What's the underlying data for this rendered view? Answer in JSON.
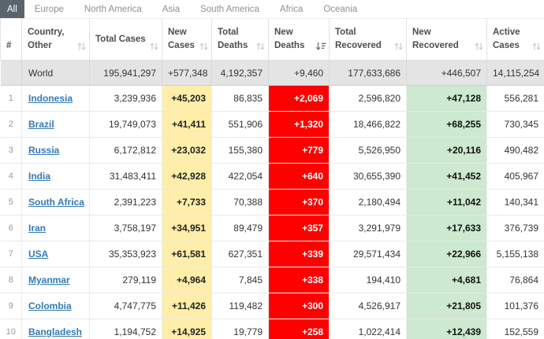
{
  "tabbar": {
    "tabs": [
      {
        "id": "all",
        "label": "All",
        "active": true
      },
      {
        "id": "europe",
        "label": "Europe",
        "active": false
      },
      {
        "id": "north-america",
        "label": "North America",
        "active": false
      },
      {
        "id": "asia",
        "label": "Asia",
        "active": false
      },
      {
        "id": "south-america",
        "label": "South America",
        "active": false
      },
      {
        "id": "africa",
        "label": "Africa",
        "active": false
      },
      {
        "id": "oceania",
        "label": "Oceania",
        "active": false
      }
    ]
  },
  "table": {
    "columns": [
      {
        "id": "rank",
        "label": "#",
        "sortable": false,
        "sort": "none",
        "icon": ""
      },
      {
        "id": "country",
        "label": "Country, Other",
        "sortable": true,
        "sort": "none",
        "icon": "sort-updown-icon"
      },
      {
        "id": "total_cases",
        "label": "Total Cases",
        "sortable": true,
        "sort": "none",
        "icon": "sort-updown-icon"
      },
      {
        "id": "new_cases",
        "label": "New Cases",
        "sortable": true,
        "sort": "none",
        "icon": "sort-updown-icon"
      },
      {
        "id": "total_deaths",
        "label": "Total Deaths",
        "sortable": true,
        "sort": "none",
        "icon": "sort-updown-icon"
      },
      {
        "id": "new_deaths",
        "label": "New Deaths",
        "sortable": true,
        "sort": "desc",
        "icon": "sort-amount-desc-icon"
      },
      {
        "id": "total_recovered",
        "label": "Total Recovered",
        "sortable": true,
        "sort": "none",
        "icon": "sort-updown-icon"
      },
      {
        "id": "new_recovered",
        "label": "New Recovered",
        "sortable": true,
        "sort": "none",
        "icon": "sort-updown-icon"
      },
      {
        "id": "active_cases",
        "label": "Active Cases",
        "sortable": true,
        "sort": "none",
        "icon": "sort-updown-icon"
      }
    ],
    "world_row": {
      "rank": "",
      "country": "World",
      "total_cases": "195,941,297",
      "new_cases": "+577,348",
      "total_deaths": "4,192,357",
      "new_deaths": "+9,460",
      "total_recovered": "177,633,686",
      "new_recovered": "+446,507",
      "active_cases": "14,115,254"
    },
    "rows": [
      {
        "rank": "1",
        "country": "Indonesia",
        "total_cases": "3,239,936",
        "new_cases": "+45,203",
        "total_deaths": "86,835",
        "new_deaths": "+2,069",
        "total_recovered": "2,596,820",
        "new_recovered": "+47,128",
        "active_cases": "556,281"
      },
      {
        "rank": "2",
        "country": "Brazil",
        "total_cases": "19,749,073",
        "new_cases": "+41,411",
        "total_deaths": "551,906",
        "new_deaths": "+1,320",
        "total_recovered": "18,466,822",
        "new_recovered": "+68,255",
        "active_cases": "730,345"
      },
      {
        "rank": "3",
        "country": "Russia",
        "total_cases": "6,172,812",
        "new_cases": "+23,032",
        "total_deaths": "155,380",
        "new_deaths": "+779",
        "total_recovered": "5,526,950",
        "new_recovered": "+20,116",
        "active_cases": "490,482"
      },
      {
        "rank": "4",
        "country": "India",
        "total_cases": "31,483,411",
        "new_cases": "+42,928",
        "total_deaths": "422,054",
        "new_deaths": "+640",
        "total_recovered": "30,655,390",
        "new_recovered": "+41,452",
        "active_cases": "405,967"
      },
      {
        "rank": "5",
        "country": "South Africa",
        "total_cases": "2,391,223",
        "new_cases": "+7,733",
        "total_deaths": "70,388",
        "new_deaths": "+370",
        "total_recovered": "2,180,494",
        "new_recovered": "+11,042",
        "active_cases": "140,341"
      },
      {
        "rank": "6",
        "country": "Iran",
        "total_cases": "3,758,197",
        "new_cases": "+34,951",
        "total_deaths": "89,479",
        "new_deaths": "+357",
        "total_recovered": "3,291,979",
        "new_recovered": "+17,633",
        "active_cases": "376,739"
      },
      {
        "rank": "7",
        "country": "USA",
        "total_cases": "35,353,923",
        "new_cases": "+61,581",
        "total_deaths": "627,351",
        "new_deaths": "+339",
        "total_recovered": "29,571,434",
        "new_recovered": "+22,966",
        "active_cases": "5,155,138"
      },
      {
        "rank": "8",
        "country": "Myanmar",
        "total_cases": "279,119",
        "new_cases": "+4,964",
        "total_deaths": "7,845",
        "new_deaths": "+338",
        "total_recovered": "194,410",
        "new_recovered": "+4,681",
        "active_cases": "76,864"
      },
      {
        "rank": "9",
        "country": "Colombia",
        "total_cases": "4,747,775",
        "new_cases": "+11,426",
        "total_deaths": "119,482",
        "new_deaths": "+300",
        "total_recovered": "4,526,917",
        "new_recovered": "+21,805",
        "active_cases": "101,376"
      },
      {
        "rank": "10",
        "country": "Bangladesh",
        "total_cases": "1,194,752",
        "new_cases": "+14,925",
        "total_deaths": "19,779",
        "new_deaths": "+258",
        "total_recovered": "1,022,414",
        "new_recovered": "+12,439",
        "active_cases": "152,559"
      }
    ]
  },
  "colors": {
    "active_tab_bg": "#5a646e",
    "inactive_tab_text": "#8b919a",
    "new_cases_bg": "#ffeeaa",
    "new_deaths_bg": "#fe0000",
    "new_recovered_bg": "#cde9cf",
    "world_row_bg": "#e4e4e4",
    "country_link": "#337ab7"
  }
}
